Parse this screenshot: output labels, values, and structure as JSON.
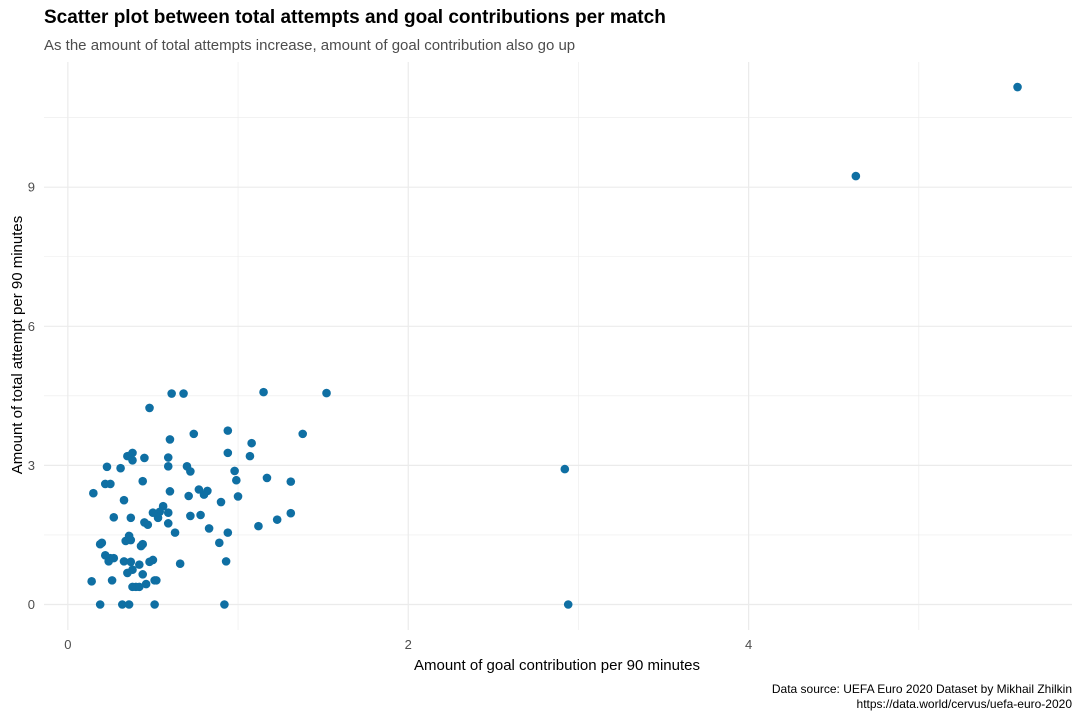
{
  "title": "Scatter plot between total attempts and goal contributions per match",
  "subtitle": "As the amount of total attempts increase, amount of goal contribution also go up",
  "caption": {
    "line1": "Data source: UEFA Euro 2020 Dataset by Mikhail Zhilkin",
    "line2": "https://data.world/cervus/uefa-euro-2020"
  },
  "colors": {
    "point": "#0f6fa3",
    "grid": "#ebebeb"
  },
  "chart_data": {
    "type": "scatter",
    "xlabel": "Amount of goal contribution per 90 minutes",
    "ylabel": "Amount of total attempt per 90 minutes",
    "xlim": [
      -0.14,
      5.9
    ],
    "ylim": [
      -0.55,
      11.7
    ],
    "xticks": [
      0,
      2,
      4
    ],
    "yticks": [
      0,
      3,
      6,
      9
    ],
    "grid": true,
    "points": [
      [
        5.58,
        11.16
      ],
      [
        4.63,
        9.24
      ],
      [
        2.92,
        2.92
      ],
      [
        2.94,
        0.0
      ],
      [
        1.52,
        4.56
      ],
      [
        1.15,
        4.58
      ],
      [
        1.38,
        3.68
      ],
      [
        1.08,
        3.48
      ],
      [
        1.07,
        3.2
      ],
      [
        1.31,
        2.65
      ],
      [
        1.31,
        1.97
      ],
      [
        1.23,
        1.83
      ],
      [
        1.12,
        1.69
      ],
      [
        1.17,
        2.73
      ],
      [
        0.98,
        2.88
      ],
      [
        0.99,
        2.68
      ],
      [
        1.0,
        2.33
      ],
      [
        0.94,
        3.75
      ],
      [
        0.94,
        3.27
      ],
      [
        0.94,
        1.55
      ],
      [
        0.93,
        0.93
      ],
      [
        0.92,
        0.0
      ],
      [
        0.9,
        2.21
      ],
      [
        0.89,
        1.33
      ],
      [
        0.82,
        2.45
      ],
      [
        0.8,
        2.37
      ],
      [
        0.77,
        2.48
      ],
      [
        0.78,
        1.93
      ],
      [
        0.83,
        1.64
      ],
      [
        0.74,
        3.68
      ],
      [
        0.72,
        2.87
      ],
      [
        0.7,
        2.98
      ],
      [
        0.71,
        2.34
      ],
      [
        0.72,
        1.91
      ],
      [
        0.68,
        4.55
      ],
      [
        0.61,
        4.55
      ],
      [
        0.48,
        4.24
      ],
      [
        0.6,
        3.56
      ],
      [
        0.59,
        3.17
      ],
      [
        0.59,
        2.98
      ],
      [
        0.6,
        2.44
      ],
      [
        0.59,
        1.98
      ],
      [
        0.59,
        1.75
      ],
      [
        0.63,
        1.55
      ],
      [
        0.66,
        0.88
      ],
      [
        0.56,
        2.12
      ],
      [
        0.54,
        2.0
      ],
      [
        0.53,
        1.87
      ],
      [
        0.5,
        1.98
      ],
      [
        0.47,
        1.72
      ],
      [
        0.45,
        1.77
      ],
      [
        0.45,
        3.16
      ],
      [
        0.44,
        2.66
      ],
      [
        0.38,
        3.27
      ],
      [
        0.38,
        3.11
      ],
      [
        0.35,
        3.2
      ],
      [
        0.31,
        2.94
      ],
      [
        0.33,
        2.25
      ],
      [
        0.25,
        2.6
      ],
      [
        0.22,
        2.6
      ],
      [
        0.23,
        2.97
      ],
      [
        0.15,
        2.4
      ],
      [
        0.27,
        1.88
      ],
      [
        0.37,
        1.87
      ],
      [
        0.36,
        1.48
      ],
      [
        0.34,
        1.37
      ],
      [
        0.37,
        1.39
      ],
      [
        0.44,
        1.3
      ],
      [
        0.43,
        1.26
      ],
      [
        0.2,
        1.33
      ],
      [
        0.19,
        1.3
      ],
      [
        0.22,
        1.06
      ],
      [
        0.25,
        1.0
      ],
      [
        0.24,
        0.93
      ],
      [
        0.27,
        1.0
      ],
      [
        0.33,
        0.93
      ],
      [
        0.37,
        0.92
      ],
      [
        0.42,
        0.86
      ],
      [
        0.38,
        0.75
      ],
      [
        0.35,
        0.68
      ],
      [
        0.44,
        0.65
      ],
      [
        0.48,
        0.92
      ],
      [
        0.5,
        0.96
      ],
      [
        0.26,
        0.52
      ],
      [
        0.14,
        0.5
      ],
      [
        0.51,
        0.52
      ],
      [
        0.52,
        0.52
      ],
      [
        0.4,
        0.38
      ],
      [
        0.38,
        0.38
      ],
      [
        0.42,
        0.38
      ],
      [
        0.46,
        0.44
      ],
      [
        0.19,
        0.0
      ],
      [
        0.32,
        0.0
      ],
      [
        0.36,
        0.0
      ],
      [
        0.51,
        0.0
      ]
    ]
  }
}
